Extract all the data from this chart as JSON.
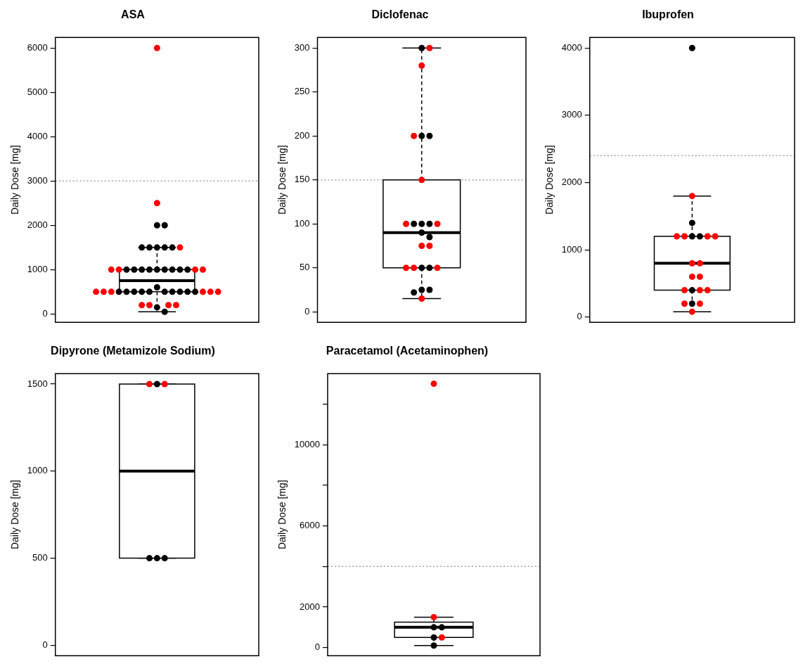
{
  "chart_data": [
    {
      "type": "box",
      "title": "ASA",
      "ylabel": "Daily Dose [mg]",
      "categories": [
        null
      ],
      "ylim": [
        -188,
        6238
      ],
      "yticks": [
        0,
        1000,
        2000,
        3000,
        4000,
        5000,
        6000
      ],
      "grid": false,
      "legend": false,
      "ref_lines": [
        {
          "axis": "y",
          "value": 3000,
          "color": "#a0a0a0",
          "line_style": "dotted"
        }
      ],
      "boxes": [
        {
          "low": 50,
          "q1": 500,
          "median": 750,
          "q3": 1000,
          "high": 1500
        }
      ],
      "series": [
        {
          "type": "scatter",
          "color": "#000000",
          "x": [
            null,
            null,
            null,
            null,
            null,
            null,
            null,
            null,
            null,
            null,
            null,
            null,
            null,
            null,
            null,
            null,
            null,
            null,
            null,
            null,
            null,
            null,
            null,
            null,
            null,
            null,
            null,
            null,
            null
          ],
          "values": [
            2000,
            2000,
            1500,
            1500,
            1500,
            1500,
            1500,
            1000,
            1000,
            1000,
            1000,
            1000,
            1000,
            1000,
            1000,
            1000,
            600,
            500,
            500,
            500,
            500,
            500,
            500,
            500,
            500,
            500,
            500,
            150,
            50
          ]
        },
        {
          "type": "scatter",
          "color": "#ff0000",
          "x": [
            null,
            null,
            null,
            null,
            null,
            null,
            null,
            null,
            null,
            null,
            null,
            null,
            null,
            null,
            null,
            null,
            null
          ],
          "values": [
            6000,
            2500,
            1500,
            1000,
            1000,
            1000,
            1000,
            500,
            500,
            500,
            500,
            500,
            500,
            200,
            200,
            200,
            200
          ]
        }
      ]
    },
    {
      "type": "box",
      "title": "Diclofenac",
      "ylabel": "Daily Dose [mg]",
      "categories": [
        null
      ],
      "ylim": [
        -12,
        312
      ],
      "yticks": [
        0,
        50,
        100,
        150,
        200,
        250,
        300
      ],
      "grid": false,
      "legend": false,
      "ref_lines": [
        {
          "axis": "y",
          "value": 150,
          "color": "#a0a0a0",
          "line_style": "dotted"
        }
      ],
      "boxes": [
        {
          "low": 15,
          "q1": 50,
          "median": 90,
          "q3": 150,
          "high": 300
        }
      ],
      "series": [
        {
          "type": "scatter",
          "color": "#000000",
          "x": [
            null,
            null,
            null,
            null,
            null,
            null,
            null,
            null,
            null,
            null,
            null,
            null,
            null
          ],
          "values": [
            300,
            200,
            200,
            100,
            100,
            100,
            90,
            85,
            50,
            50,
            25,
            25,
            22
          ]
        },
        {
          "type": "scatter",
          "color": "#ff0000",
          "x": [
            null,
            null,
            null,
            null,
            null,
            null,
            null,
            null,
            null,
            null,
            null,
            null
          ],
          "values": [
            300,
            280,
            200,
            150,
            100,
            100,
            75,
            75,
            50,
            50,
            50,
            15
          ]
        }
      ]
    },
    {
      "type": "box",
      "title": "Ibuprofen",
      "ylabel": "Daily Dose [mg]",
      "categories": [
        null
      ],
      "ylim": [
        -77,
        4157
      ],
      "yticks": [
        0,
        1000,
        2000,
        3000,
        4000
      ],
      "grid": false,
      "legend": false,
      "ref_lines": [
        {
          "axis": "y",
          "value": 2400,
          "color": "#a0a0a0",
          "line_style": "dotted"
        }
      ],
      "boxes": [
        {
          "low": 80,
          "q1": 400,
          "median": 800,
          "q3": 1200,
          "high": 1800
        }
      ],
      "series": [
        {
          "type": "scatter",
          "color": "#000000",
          "x": [
            null,
            null,
            null,
            null,
            null,
            null
          ],
          "values": [
            4000,
            1400,
            1200,
            1200,
            400,
            200
          ]
        },
        {
          "type": "scatter",
          "color": "#ff0000",
          "x": [
            null,
            null,
            null,
            null,
            null,
            null,
            null,
            null,
            null,
            null,
            null,
            null,
            null,
            null,
            null
          ],
          "values": [
            1800,
            1200,
            1200,
            1200,
            1200,
            800,
            800,
            600,
            600,
            400,
            400,
            400,
            200,
            200,
            80
          ]
        }
      ]
    },
    {
      "type": "box",
      "title": "Dipyrone (Metamizole Sodium)",
      "ylabel": "Daily Dose [mg]",
      "categories": [
        null
      ],
      "ylim": [
        -60,
        1560
      ],
      "yticks": [
        0,
        500,
        1000,
        1500
      ],
      "grid": false,
      "legend": false,
      "boxes": [
        {
          "low": 500,
          "q1": 500,
          "median": 1000,
          "q3": 1500,
          "high": 1500
        }
      ],
      "series": [
        {
          "type": "scatter",
          "color": "#000000",
          "x": [
            null,
            null,
            null,
            null
          ],
          "values": [
            1500,
            500,
            500,
            500
          ]
        },
        {
          "type": "scatter",
          "color": "#ff0000",
          "x": [
            null,
            null
          ],
          "values": [
            1500,
            1500
          ]
        }
      ]
    },
    {
      "type": "box",
      "title": "Paracetamol (Acetaminophen)",
      "ylabel": "Daily Dose [mg]",
      "categories": [
        null
      ],
      "ylim": [
        -400,
        13500
      ],
      "yticks": [
        0,
        2000,
        {
          "value": 4000,
          "label": null
        },
        6000,
        {
          "value": 8000,
          "label": null
        },
        10000,
        {
          "value": 12000,
          "label": null
        }
      ],
      "grid": false,
      "legend": false,
      "ref_lines": [
        {
          "axis": "y",
          "value": 4000,
          "color": "#a0a0a0",
          "line_style": "dotted"
        }
      ],
      "boxes": [
        {
          "low": 100,
          "q1": 500,
          "median": 1000,
          "q3": 1250,
          "high": 1500
        }
      ],
      "series": [
        {
          "type": "scatter",
          "color": "#000000",
          "x": [
            null,
            null,
            null,
            null
          ],
          "values": [
            1000,
            1000,
            500,
            100
          ]
        },
        {
          "type": "scatter",
          "color": "#ff0000",
          "x": [
            null,
            null,
            null
          ],
          "values": [
            13000,
            1500,
            500
          ]
        }
      ]
    }
  ]
}
